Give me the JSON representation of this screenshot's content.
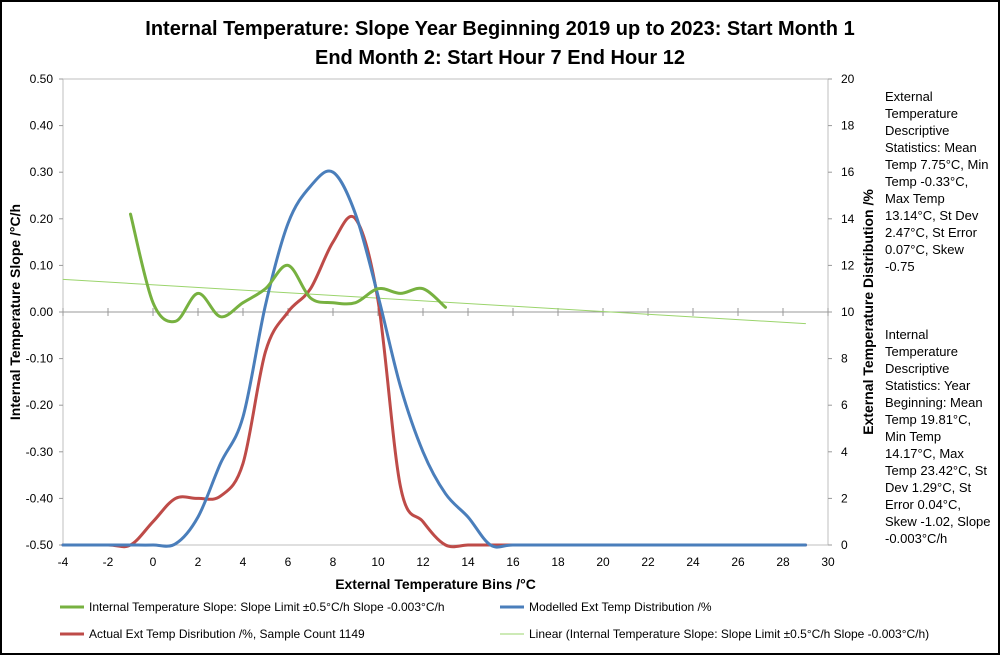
{
  "chart_data": {
    "type": "line",
    "title_line1": "Internal Temperature: Slope Year Beginning 2019 up to 2023: Start Month 1",
    "title_line2": "End Month 2: Start Hour 7 End Hour 12",
    "xlabel": "External Temperature Bins /°C",
    "ylabel_left": "Internal Temperature Slope /°C/h",
    "ylabel_right": "External Temperature Distribution /%",
    "xlim": [
      -4,
      30
    ],
    "ylim_left": [
      -0.5,
      0.5
    ],
    "ylim_right": [
      0,
      20
    ],
    "x_ticks": [
      "-4",
      "-2",
      "0",
      "2",
      "4",
      "6",
      "8",
      "10",
      "12",
      "14",
      "16",
      "18",
      "20",
      "22",
      "24",
      "26",
      "28",
      "30"
    ],
    "y_left_ticks": [
      "0.50",
      "0.40",
      "0.30",
      "0.20",
      "0.10",
      "0.00",
      "-0.10",
      "-0.20",
      "-0.30",
      "-0.40",
      "-0.50"
    ],
    "y_right_ticks": [
      "20",
      "18",
      "16",
      "14",
      "12",
      "10",
      "8",
      "6",
      "4",
      "2",
      "0"
    ],
    "grid": false,
    "legend_position": "bottom",
    "series": [
      {
        "name": "Internal Temperature Slope: Slope Limit ±0.5°C/h Slope -0.003°C/h",
        "axis": "left",
        "color": "#77b140",
        "width": 3,
        "x": [
          -1,
          0,
          1,
          2,
          3,
          4,
          5,
          6,
          7,
          8,
          9,
          10,
          11,
          12,
          13
        ],
        "y": [
          0.21,
          0.02,
          -0.02,
          0.04,
          -0.01,
          0.02,
          0.05,
          0.1,
          0.03,
          0.02,
          0.02,
          0.05,
          0.04,
          0.05,
          0.01
        ]
      },
      {
        "name": "Modelled Ext Temp Distribution /%",
        "axis": "right",
        "color": "#4a7ebb",
        "width": 3,
        "x": [
          -4,
          -3,
          -2,
          -1,
          0,
          1,
          2,
          3,
          4,
          5,
          6,
          7,
          8,
          9,
          10,
          11,
          12,
          13,
          14,
          15,
          16,
          18,
          20,
          22,
          24,
          26,
          28,
          29
        ],
        "y": [
          0,
          0,
          0,
          0,
          0,
          0.05,
          1.2,
          3.5,
          5.5,
          10.3,
          13.8,
          15.4,
          16,
          14.2,
          10.7,
          6.8,
          4.0,
          2.2,
          1.2,
          0,
          0,
          0,
          0,
          0,
          0,
          0,
          0,
          0
        ]
      },
      {
        "name": "Actual Ext Temp Disribution /%, Sample Count 1149",
        "axis": "right",
        "color": "#be4b48",
        "width": 3,
        "x": [
          -4,
          -2,
          -1,
          0,
          1,
          2,
          3,
          4,
          5,
          6,
          7,
          8,
          9,
          10,
          11,
          12,
          13,
          14,
          15,
          16,
          18,
          20,
          22,
          24,
          26,
          28,
          29
        ],
        "y": [
          0,
          0,
          0,
          1.0,
          2.0,
          2.0,
          2.1,
          3.5,
          8.3,
          10.0,
          11.0,
          13.0,
          14.0,
          10.5,
          2.5,
          1.0,
          0,
          0,
          0,
          0,
          0,
          0,
          0,
          0,
          0,
          0,
          0
        ]
      },
      {
        "name": "Linear (Internal Temperature Slope: Slope Limit ±0.5°C/h Slope -0.003°C/h)",
        "axis": "left",
        "color": "#9bd46c",
        "width": 1,
        "x": [
          -4,
          29
        ],
        "y": [
          0.07,
          -0.025
        ]
      }
    ]
  },
  "side_text": {
    "external_stats": "External Temperature Descriptive Statistics: Mean Temp 7.75°C, Min Temp -0.33°C, Max Temp 13.14°C, St Dev 2.47°C, St Error 0.07°C, Skew -0.75",
    "internal_stats": "Internal Temperature Descriptive Statistics: Year Beginning: Mean Temp 19.81°C, Min Temp 14.17°C, Max Temp 23.42°C, St Dev 1.29°C, St Error 0.04°C, Skew -1.02, Slope -0.003°C/h"
  }
}
